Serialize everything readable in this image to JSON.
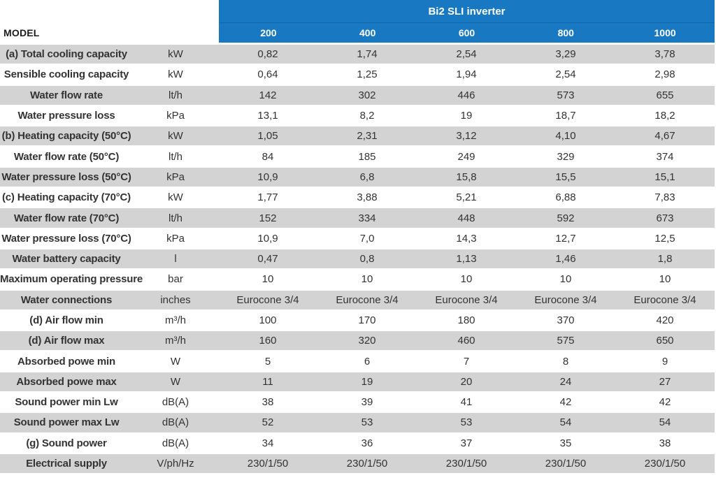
{
  "colors": {
    "header_blue": "#1879c2",
    "stripe_gray": "#d3d3d3",
    "header_text": "#ffffff",
    "body_text": "#333333"
  },
  "header": {
    "group_title": "Bi2 SLI inverter",
    "model_label": "MODEL",
    "models": [
      "200",
      "400",
      "600",
      "800",
      "1000"
    ]
  },
  "table": {
    "rows": [
      {
        "label": "(a) Total cooling capacity",
        "unit": "kW",
        "values": [
          "0,82",
          "1,74",
          "2,54",
          "3,29",
          "3,78"
        ]
      },
      {
        "label": "Sensible cooling capacity",
        "unit": "kW",
        "values": [
          "0,64",
          "1,25",
          "1,94",
          "2,54",
          "2,98"
        ]
      },
      {
        "label": "Water flow rate",
        "unit": "lt/h",
        "values": [
          "142",
          "302",
          "446",
          "573",
          "655"
        ]
      },
      {
        "label": "Water pressure loss",
        "unit": "kPa",
        "values": [
          "13,1",
          "8,2",
          "19",
          "18,7",
          "18,2"
        ]
      },
      {
        "label": "(b) Heating capacity (50°C)",
        "unit": "kW",
        "values": [
          "1,05",
          "2,31",
          "3,12",
          "4,10",
          "4,67"
        ]
      },
      {
        "label": "Water flow rate (50°C)",
        "unit": "lt/h",
        "values": [
          "84",
          "185",
          "249",
          "329",
          "374"
        ]
      },
      {
        "label": "Water pressure loss (50°C)",
        "unit": "kPa",
        "values": [
          "10,9",
          "6,8",
          "15,8",
          "15,5",
          "15,1"
        ]
      },
      {
        "label": "(c) Heating capacity (70°C)",
        "unit": "kW",
        "values": [
          "1,77",
          "3,88",
          "5,21",
          "6,88",
          "7,83"
        ]
      },
      {
        "label": "Water flow rate (70°C)",
        "unit": "lt/h",
        "values": [
          "152",
          "334",
          "448",
          "592",
          "673"
        ]
      },
      {
        "label": "Water pressure loss (70°C)",
        "unit": "kPa",
        "values": [
          "10,9",
          "7,0",
          "14,3",
          "12,7",
          "12,5"
        ]
      },
      {
        "label": "Water battery capacity",
        "unit": "l",
        "values": [
          "0,47",
          "0,8",
          "1,13",
          "1,46",
          "1,8"
        ]
      },
      {
        "label": "Maximum operating pressure",
        "unit": "bar",
        "values": [
          "10",
          "10",
          "10",
          "10",
          "10"
        ]
      },
      {
        "label": "Water connections",
        "unit": "inches",
        "values": [
          "Eurocone 3/4",
          "Eurocone 3/4",
          "Eurocone 3/4",
          "Eurocone 3/4",
          "Eurocone 3/4"
        ]
      },
      {
        "label": "(d) Air flow min",
        "unit": "m³/h",
        "values": [
          "100",
          "170",
          "180",
          "370",
          "420"
        ]
      },
      {
        "label": "(d) Air flow max",
        "unit": "m³/h",
        "values": [
          "160",
          "320",
          "460",
          "575",
          "650"
        ]
      },
      {
        "label": "Absorbed powe min",
        "unit": "W",
        "values": [
          "5",
          "6",
          "7",
          "8",
          "9"
        ]
      },
      {
        "label": "Absorbed powe max",
        "unit": "W",
        "values": [
          "11",
          "19",
          "20",
          "24",
          "27"
        ]
      },
      {
        "label": "Sound power min Lw",
        "unit": "dB(A)",
        "values": [
          "38",
          "39",
          "41",
          "42",
          "42"
        ]
      },
      {
        "label": "Sound power max Lw",
        "unit": "dB(A)",
        "values": [
          "52",
          "53",
          "53",
          "54",
          "54"
        ]
      },
      {
        "label": "(g) Sound power",
        "unit": "dB(A)",
        "values": [
          "34",
          "36",
          "37",
          "35",
          "38"
        ]
      },
      {
        "label": "Electrical supply",
        "unit": "V/ph/Hz",
        "values": [
          "230/1/50",
          "230/1/50",
          "230/1/50",
          "230/1/50",
          "230/1/50"
        ]
      }
    ]
  }
}
